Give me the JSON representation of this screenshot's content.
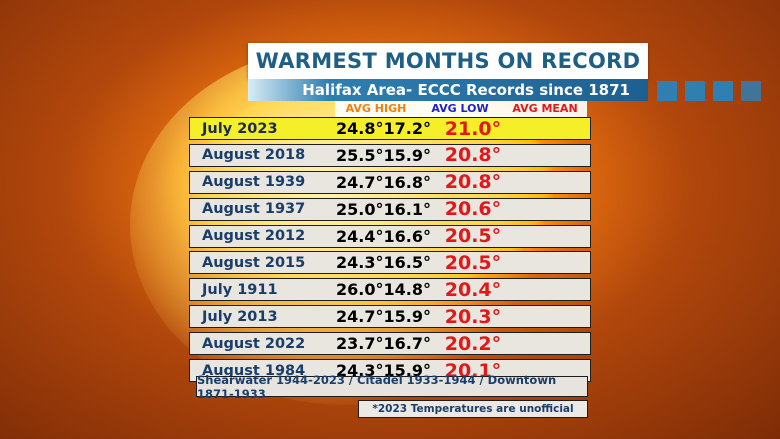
{
  "title": "WARMEST MONTHS ON RECORD",
  "subtitle": "Halifax Area- ECCC Records since 1871",
  "columns": {
    "high": "AVG HIGH",
    "low": "AVG LOW",
    "mean": "AVG MEAN"
  },
  "colors": {
    "high": "#f08010",
    "low": "#1d22cc",
    "mean": "#e21818",
    "highlight_row": "#f5ef2a",
    "title_text": "#1f5f86"
  },
  "rows": [
    {
      "month": "July 2023",
      "high": "24.8°",
      "low": "17.2°",
      "mean": "21.0°"
    },
    {
      "month": "August 2018",
      "high": "25.5°",
      "low": "15.9°",
      "mean": "20.8°"
    },
    {
      "month": "August 1939",
      "high": "24.7°",
      "low": "16.8°",
      "mean": "20.8°"
    },
    {
      "month": "August 1937",
      "high": "25.0°",
      "low": "16.1°",
      "mean": "20.6°"
    },
    {
      "month": "August 2012",
      "high": "24.4°",
      "low": "16.6°",
      "mean": "20.5°"
    },
    {
      "month": "August 2015",
      "high": "24.3°",
      "low": "16.5°",
      "mean": "20.5°"
    },
    {
      "month": "July 1911",
      "high": "26.0°",
      "low": "14.8°",
      "mean": "20.4°"
    },
    {
      "month": "July 2013",
      "high": "24.7°",
      "low": "15.9°",
      "mean": "20.3°"
    },
    {
      "month": "August 2022",
      "high": "23.7°",
      "low": "16.7°",
      "mean": "20.2°"
    },
    {
      "month": "August 1984",
      "high": "24.3°",
      "low": "15.9°",
      "mean": "20.1°"
    }
  ],
  "source": "Shearwater 1944-2023 / Citadel 1933-1944 / Downtown 1871-1933",
  "note": "*2023 Temperatures are unofficial"
}
